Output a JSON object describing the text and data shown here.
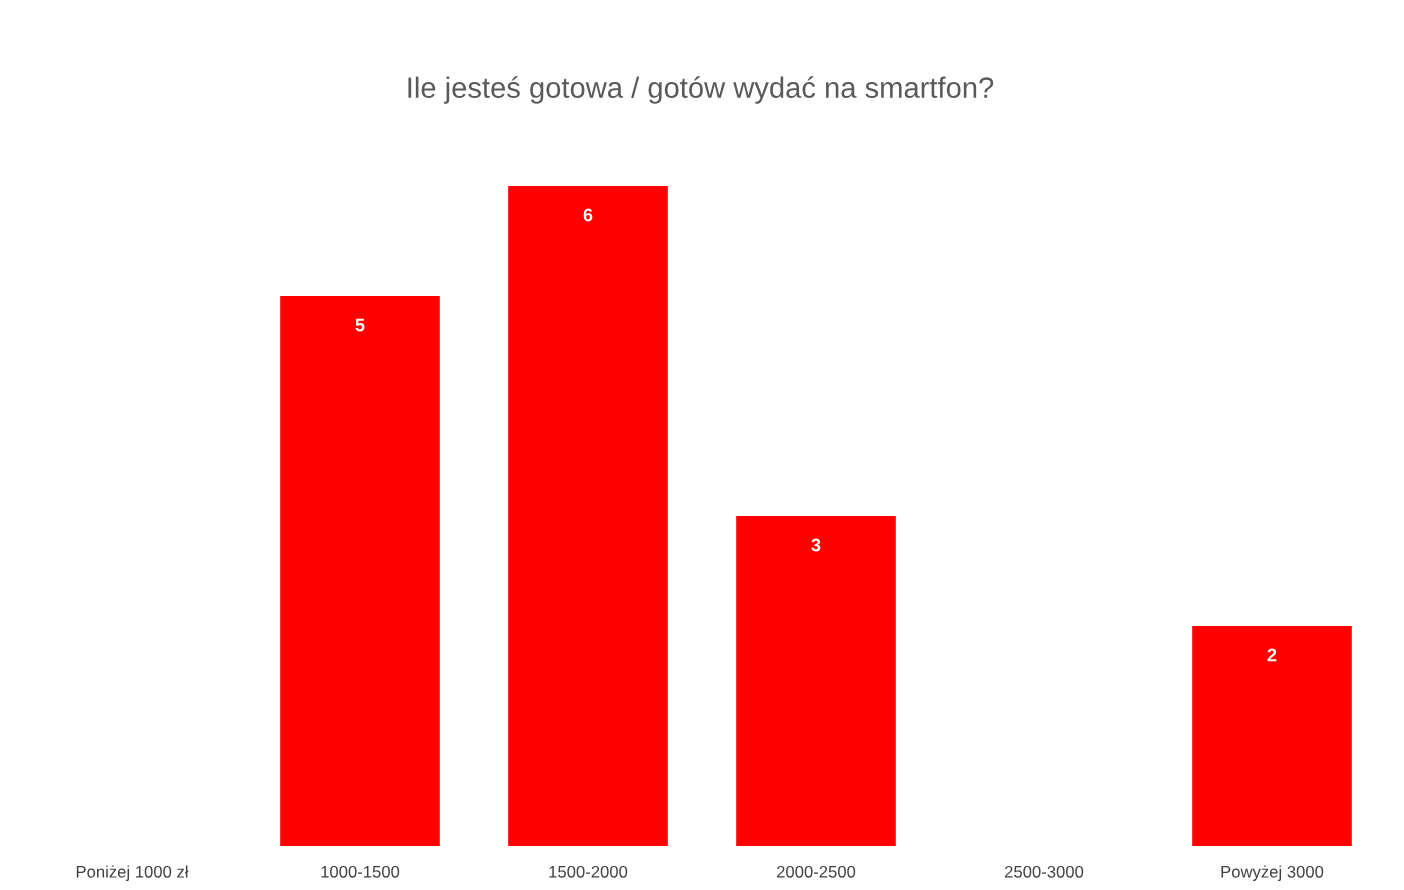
{
  "chart_data": {
    "type": "bar",
    "title": "Ile jesteś gotowa / gotów wydać na smartfon?",
    "categories": [
      "Poniżej 1000 zł",
      "1000-1500",
      "1500-2000",
      "2000-2500",
      "2500-3000",
      "Powyżej 3000"
    ],
    "values": [
      0,
      5,
      6,
      3,
      0,
      2
    ],
    "color": "#ff0000",
    "value_labels": [
      null,
      "5",
      "6",
      "3",
      null,
      "2"
    ],
    "tick_labels": "x"
  }
}
